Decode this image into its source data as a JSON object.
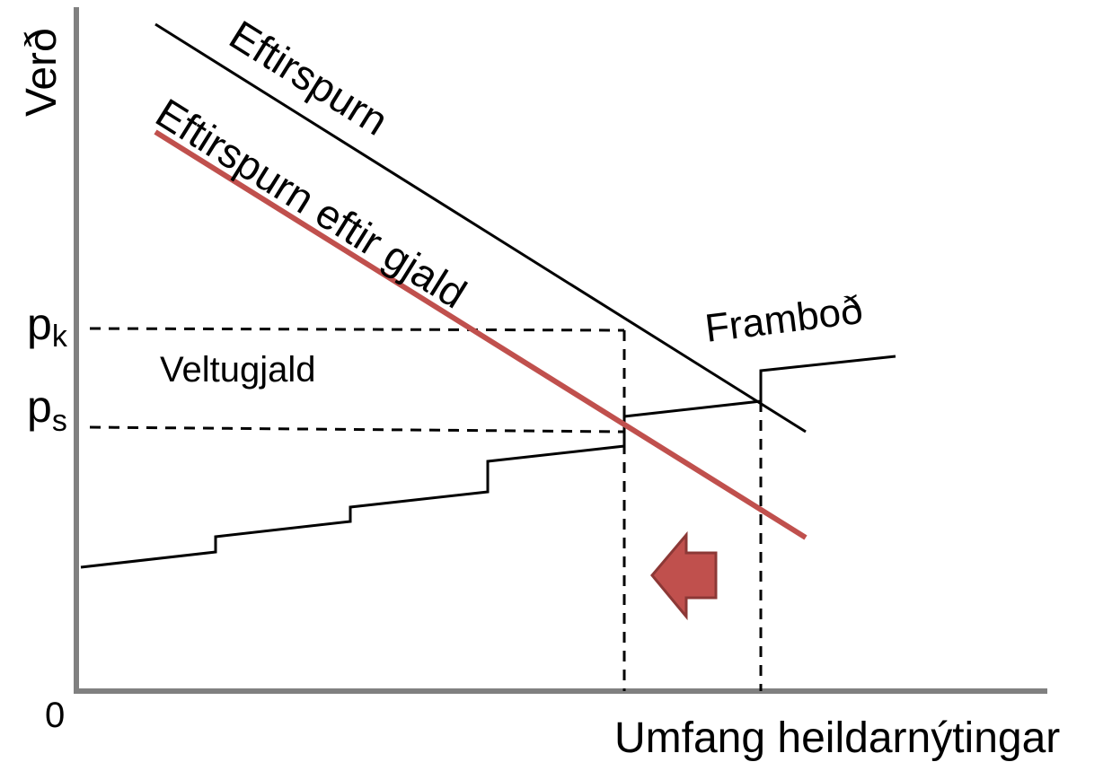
{
  "axes": {
    "y_label": "Verð",
    "x_label": "Umfang heildarnýtingar",
    "origin": "0"
  },
  "curves": {
    "demand": "Eftirspurn",
    "demand_after_fee": "Eftirspurn eftir gjald",
    "supply": "Framboð"
  },
  "prices": [
    {
      "symbol": "p",
      "subscript": "k"
    },
    {
      "symbol": "p",
      "subscript": "s"
    }
  ],
  "area_label": "Veltugjald"
}
